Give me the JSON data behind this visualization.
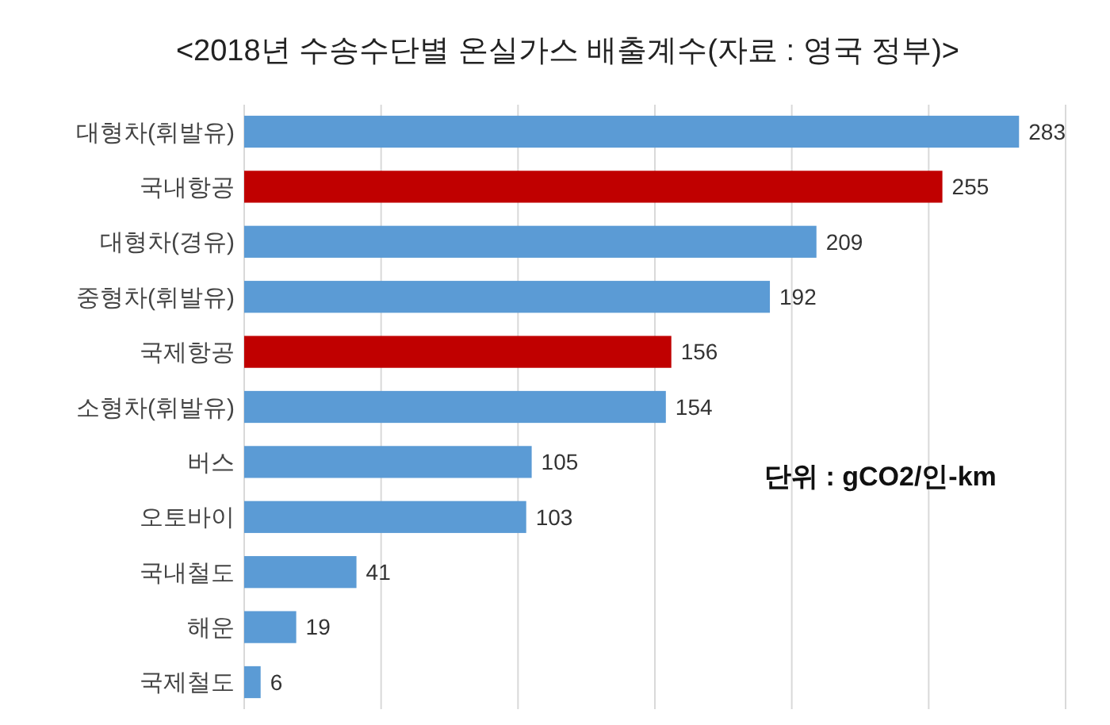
{
  "chart_data": {
    "type": "bar",
    "orientation": "horizontal",
    "title": "<2018년 수송수단별 온실가스 배출계수(자료 : 영국 정부)>",
    "categories": [
      "대형차(휘발유)",
      "국내항공",
      "대형차(경유)",
      "중형차(휘발유)",
      "국제항공",
      "소형차(휘발유)",
      "버스",
      "오토바이",
      "국내철도",
      "해운",
      "국제철도"
    ],
    "values": [
      283,
      255,
      209,
      192,
      156,
      154,
      105,
      103,
      41,
      19,
      6
    ],
    "colors": [
      "#5b9bd5",
      "#c00000",
      "#5b9bd5",
      "#5b9bd5",
      "#c00000",
      "#5b9bd5",
      "#5b9bd5",
      "#5b9bd5",
      "#5b9bd5",
      "#5b9bd5",
      "#5b9bd5"
    ],
    "xlim": [
      0,
      300
    ],
    "xticks": [
      {
        "value": 0,
        "label": null
      },
      {
        "value": 50,
        "label": null
      },
      {
        "value": 100,
        "label": null
      },
      {
        "value": 150,
        "label": null
      },
      {
        "value": 200,
        "label": null
      },
      {
        "value": 250,
        "label": null
      },
      {
        "value": 300,
        "label": null
      }
    ],
    "tick_labels": "y",
    "grid": "x",
    "data_labels": true,
    "annotations": [
      "단위 : gCO2/인-km"
    ]
  }
}
